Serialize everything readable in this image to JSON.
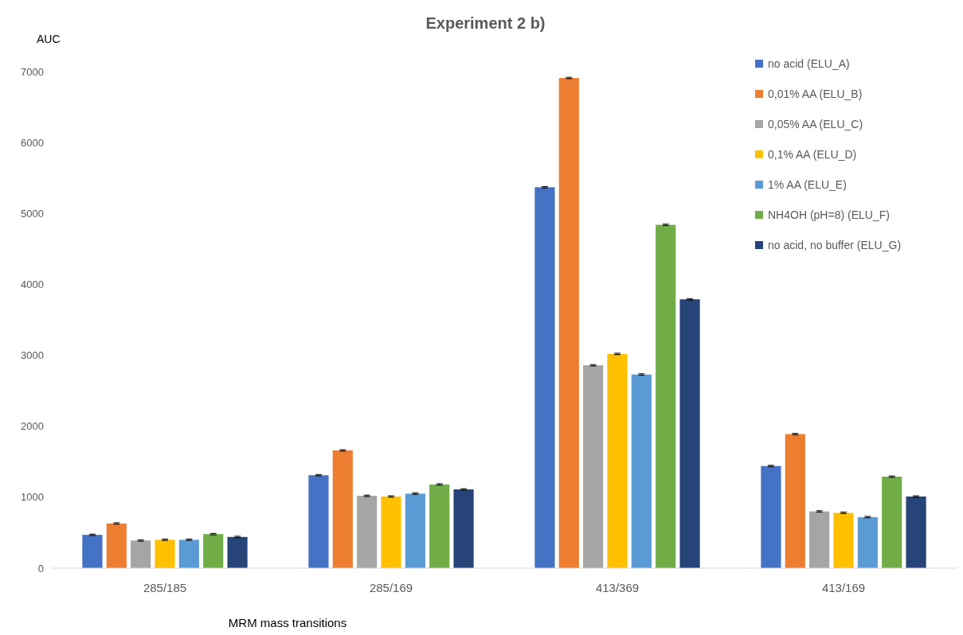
{
  "chart_data": {
    "type": "bar",
    "title": "Experiment 2 b)",
    "xlabel": "MRM mass transitions",
    "ylabel": "AUC",
    "categories": [
      "285/185",
      "285/169",
      "413/369",
      "413/169"
    ],
    "series": [
      {
        "name": "no acid (ELU_A)",
        "color": "#4472c4",
        "values": [
          470,
          1310,
          5370,
          1440
        ],
        "errors": [
          10,
          10,
          10,
          10
        ]
      },
      {
        "name": "0,01% AA (ELU_B)",
        "color": "#ed7d31",
        "values": [
          630,
          1660,
          6910,
          1890
        ],
        "errors": [
          10,
          10,
          10,
          10
        ]
      },
      {
        "name": "0,05% AA (ELU_C)",
        "color": "#a5a5a5",
        "values": [
          390,
          1020,
          2860,
          800
        ],
        "errors": [
          10,
          10,
          10,
          10
        ]
      },
      {
        "name": "0,1% AA (ELU_D)",
        "color": "#ffc000",
        "values": [
          400,
          1010,
          3020,
          780
        ],
        "errors": [
          10,
          10,
          10,
          10
        ]
      },
      {
        "name": "1% AA (ELU_E)",
        "color": "#5b9bd5",
        "values": [
          400,
          1050,
          2730,
          720
        ],
        "errors": [
          10,
          10,
          10,
          10
        ]
      },
      {
        "name": "NH4OH (pH=8) (ELU_F)",
        "color": "#70ad47",
        "values": [
          480,
          1180,
          4840,
          1290
        ],
        "errors": [
          10,
          10,
          10,
          10
        ]
      },
      {
        "name": "no acid, no buffer (ELU_G)",
        "color": "#264478",
        "values": [
          440,
          1110,
          3790,
          1010
        ],
        "errors": [
          10,
          10,
          10,
          10
        ]
      }
    ],
    "ylim": [
      0,
      7000
    ],
    "yticks": [
      0,
      1000,
      2000,
      3000,
      4000,
      5000,
      6000,
      7000
    ],
    "grid": false,
    "legend": "top right"
  }
}
